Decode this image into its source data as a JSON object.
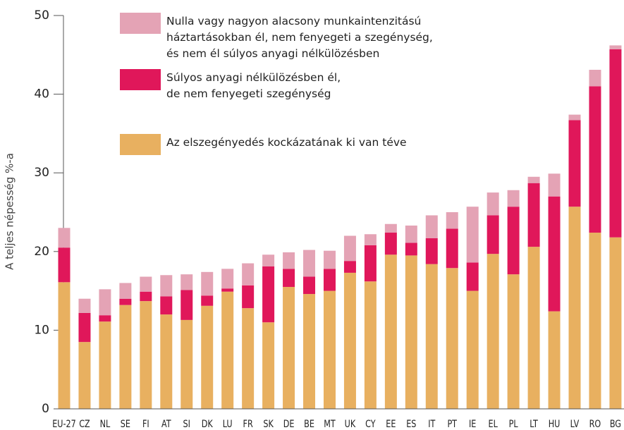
{
  "chart_data": {
    "type": "stacked-bar",
    "ylabel": "A teljes népesség %-a",
    "categories": [
      "EU-27",
      "CZ",
      "NL",
      "SE",
      "FI",
      "AT",
      "SI",
      "DK",
      "LU",
      "FR",
      "SK",
      "DE",
      "BE",
      "MT",
      "UK",
      "CY",
      "EE",
      "ES",
      "IT",
      "PT",
      "IE",
      "EL",
      "PL",
      "LT",
      "HU",
      "LV",
      "RO",
      "BG"
    ],
    "series": [
      {
        "name": "Az elszegényedés kockázatának ki van téve",
        "color": "#e8b060",
        "values": [
          16.1,
          8.5,
          11.1,
          13.2,
          13.7,
          12.0,
          11.3,
          13.1,
          14.9,
          12.8,
          11.0,
          15.5,
          14.6,
          15.0,
          17.3,
          16.2,
          19.6,
          19.5,
          18.4,
          17.9,
          15.0,
          19.7,
          17.1,
          20.6,
          12.4,
          25.7,
          22.4,
          21.8
        ]
      },
      {
        "name": "Súlyos anyagi nélkülözésben él,\nde nem fenyegeti szegénység",
        "color": "#e0175a",
        "values": [
          4.4,
          3.7,
          0.8,
          0.8,
          1.2,
          2.3,
          3.8,
          1.3,
          0.4,
          2.9,
          7.1,
          2.3,
          2.2,
          2.8,
          1.5,
          4.6,
          2.8,
          1.6,
          3.3,
          5.0,
          3.6,
          4.9,
          8.6,
          8.1,
          14.6,
          11.0,
          18.6,
          23.9
        ]
      },
      {
        "name": "Nulla vagy nagyon alacsony munkaintenzitású\nháztartásokban él, nem fenyegeti a szegénység,\nés nem él súlyos anyagi nélkülözésben",
        "color": "#e4a3b5",
        "values": [
          2.5,
          1.8,
          3.3,
          2.0,
          1.9,
          2.7,
          2.0,
          3.0,
          2.5,
          2.8,
          1.5,
          2.1,
          3.4,
          2.3,
          3.2,
          1.4,
          1.1,
          2.2,
          2.9,
          2.1,
          7.1,
          2.9,
          2.1,
          0.8,
          2.9,
          0.7,
          2.1,
          0.5
        ]
      }
    ],
    "ylim": [
      0,
      50
    ],
    "yticks": [
      0,
      10,
      20,
      30,
      40,
      50
    ]
  }
}
